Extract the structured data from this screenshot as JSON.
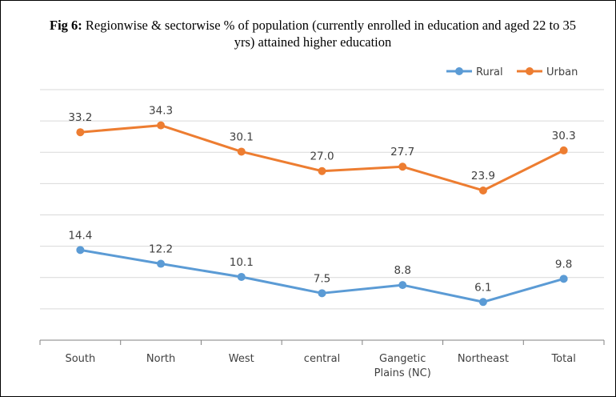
{
  "chart_data": {
    "type": "line",
    "title_prefix": "Fig 6:",
    "title": "Regionwise & sectorwise % of population (currently enrolled in education and aged 22 to 35 yrs) attained higher education",
    "categories": [
      "South",
      "North",
      "West",
      "central",
      "Gangetic Plains (NC)",
      "Northeast",
      "Total"
    ],
    "category_lines": [
      [
        "South"
      ],
      [
        "North"
      ],
      [
        "West"
      ],
      [
        "central"
      ],
      [
        "Gangetic",
        "Plains (NC)"
      ],
      [
        "Northeast"
      ],
      [
        "Total"
      ]
    ],
    "series": [
      {
        "name": "Rural",
        "color": "#5B9BD5",
        "values": [
          14.4,
          12.2,
          10.1,
          7.5,
          8.8,
          6.1,
          9.8
        ]
      },
      {
        "name": "Urban",
        "color": "#ED7D31",
        "values": [
          33.2,
          34.3,
          30.1,
          27.0,
          27.7,
          23.9,
          30.3
        ]
      }
    ],
    "ylim": [
      0,
      40
    ],
    "y_axis_labels_shown": false,
    "grid": true,
    "legend_position": "top-right",
    "data_labels": true
  }
}
